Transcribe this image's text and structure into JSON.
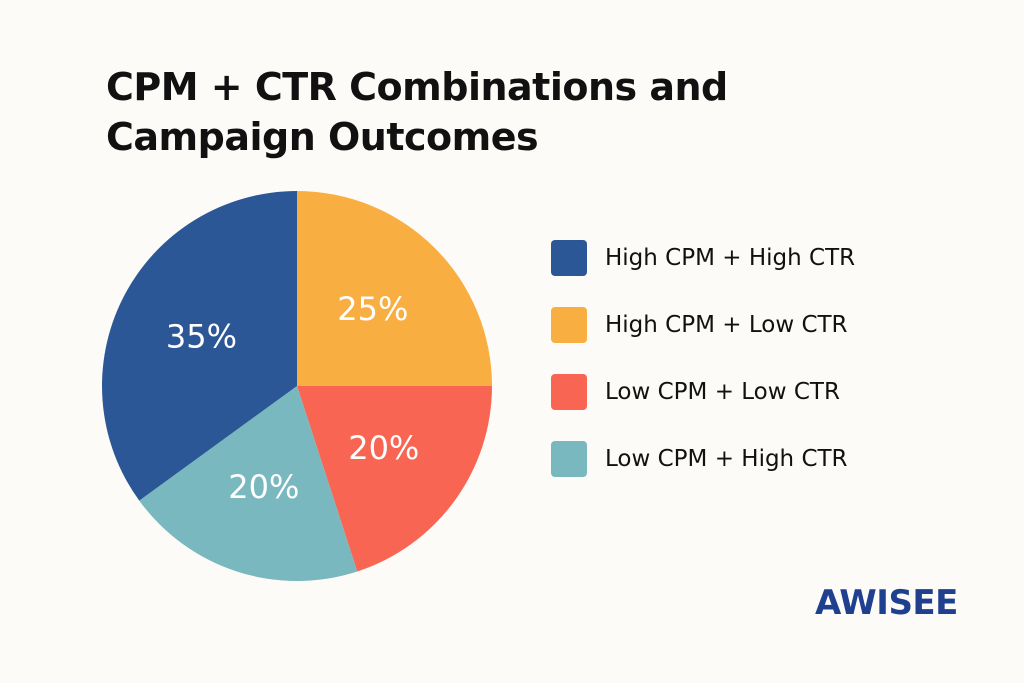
{
  "chart_data": {
    "type": "pie",
    "title": "CPM + CTR Combinations and Campaign Outcomes",
    "series": [
      {
        "name": "High CPM + High CTR",
        "value": 35,
        "label": "35%",
        "color": "#2b5797"
      },
      {
        "name": "High CPM + Low CTR",
        "value": 25,
        "label": "25%",
        "color": "#f9ae42"
      },
      {
        "name": "Low CPM + Low CTR",
        "value": 20,
        "label": "20%",
        "color": "#f96553"
      },
      {
        "name": "Low CPM + High CTR",
        "value": 20,
        "label": "20%",
        "color": "#7ab8bf"
      }
    ],
    "legend": "right"
  },
  "logo": "AWISEE"
}
